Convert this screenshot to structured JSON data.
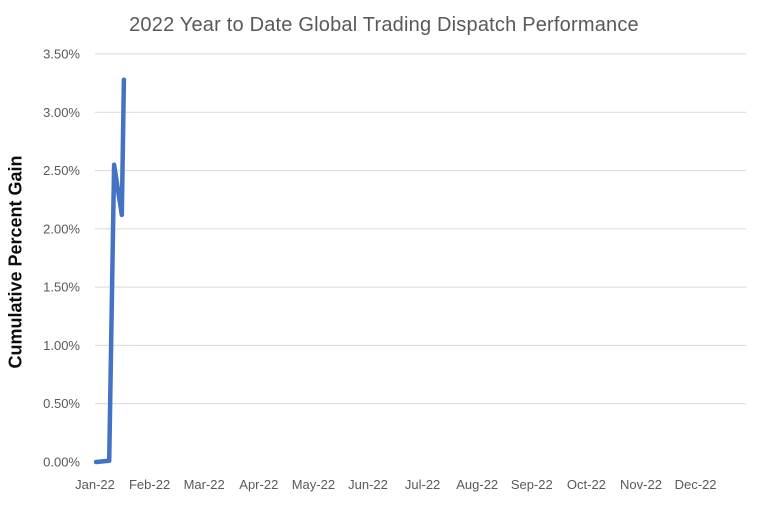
{
  "chart_data": {
    "type": "line",
    "title": "2022 Year to Date Global Trading Dispatch Performance",
    "xlabel": "",
    "ylabel": "Cumulative Percent Gain",
    "x_tick_labels": [
      "Jan-22",
      "Feb-22",
      "Mar-22",
      "Apr-22",
      "May-22",
      "Jun-22",
      "Jul-22",
      "Aug-22",
      "Sep-22",
      "Oct-22",
      "Nov-22",
      "Dec-22"
    ],
    "y_tick_labels": [
      "0.00%",
      "0.50%",
      "1.00%",
      "1.50%",
      "2.00%",
      "2.50%",
      "3.00%",
      "3.50%"
    ],
    "ylim": [
      0.0,
      3.5
    ],
    "y_tick_step_pct": 0.5,
    "xlim_months": [
      0,
      11.9
    ],
    "grid": true,
    "gridline_levels_pct": [
      0.5,
      1.0,
      1.5,
      2.0,
      2.5,
      3.0,
      3.5
    ],
    "legend": "none",
    "colors": {
      "line": "#4472C4",
      "gridline": "#D9D9D9",
      "tick_text": "#595959",
      "title_text": "#595959",
      "axis_title_text": "#0d0d0d",
      "background": "#ffffff"
    },
    "series": [
      {
        "name": "Cumulative Percent Gain",
        "x_unit": "months after Jan-22 tick",
        "y_unit": "percent",
        "points": [
          {
            "x_month": 0.02,
            "pct": 0.0
          },
          {
            "x_month": 0.26,
            "pct": 0.01
          },
          {
            "x_month": 0.35,
            "pct": 2.55
          },
          {
            "x_month": 0.49,
            "pct": 2.12
          },
          {
            "x_month": 0.53,
            "pct": 3.28
          }
        ]
      }
    ]
  }
}
